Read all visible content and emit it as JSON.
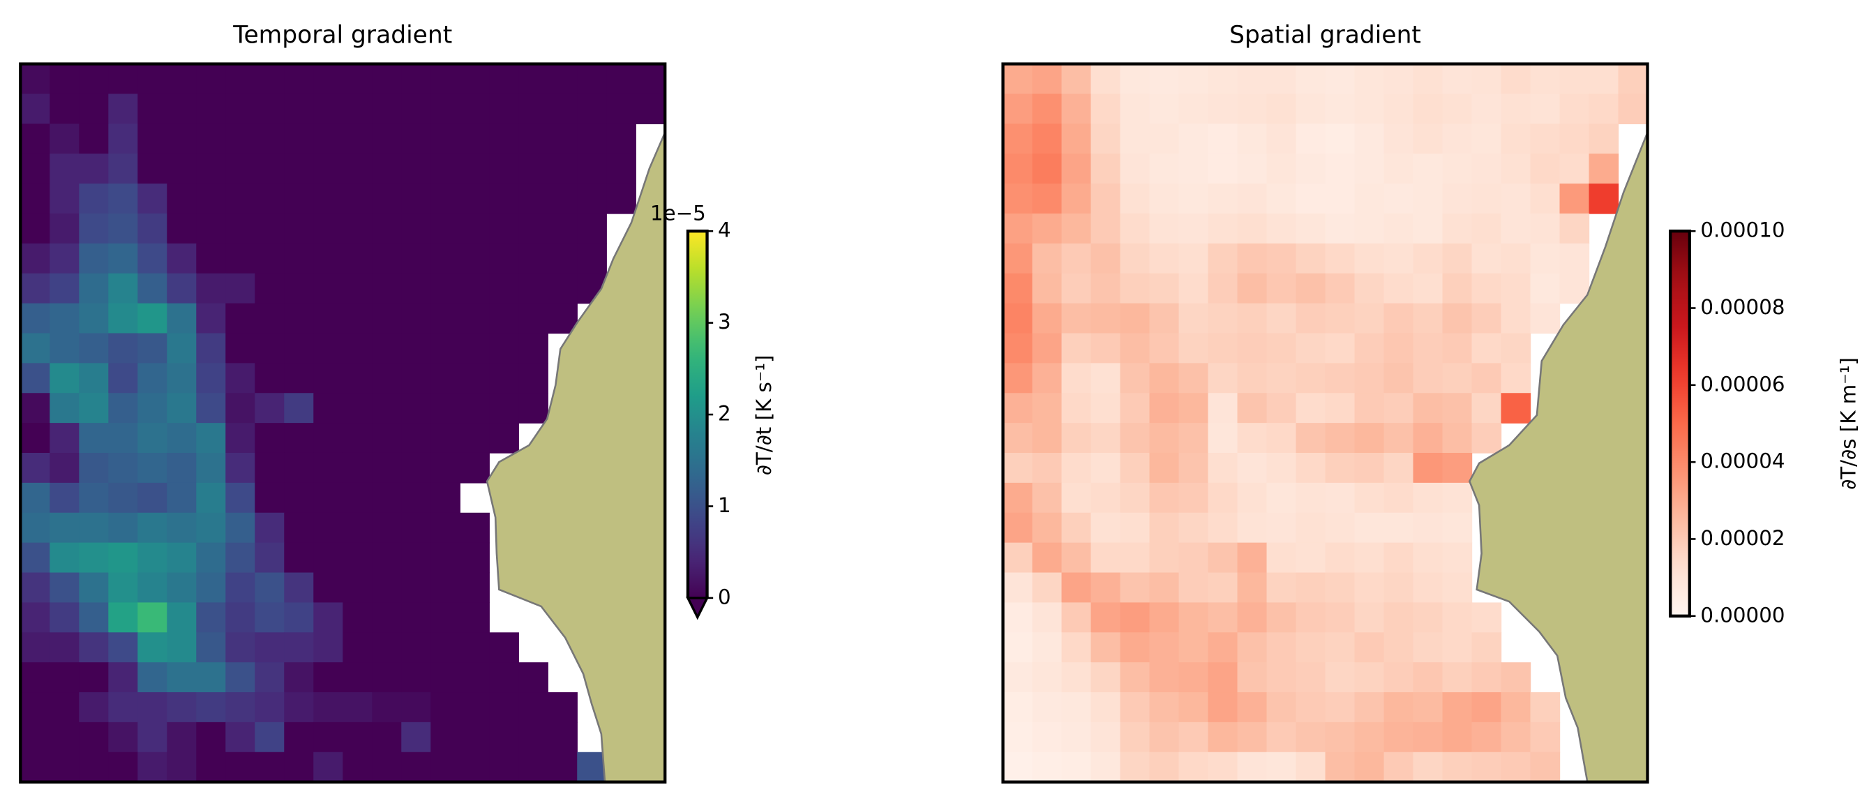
{
  "chart_data": [
    {
      "type": "heatmap",
      "title": "Temporal gradient",
      "colormap": "viridis",
      "extend": "min",
      "colorbar_label": "∂T/∂t [K s⁻¹]",
      "offset_label": "1e−5",
      "clim": [
        0,
        4
      ],
      "cticks": [
        0,
        1,
        2,
        3,
        4
      ],
      "values": [
        [
          0.1,
          0,
          0,
          0,
          0,
          0,
          0,
          0,
          0,
          0,
          0,
          0,
          0,
          0,
          0,
          0,
          0,
          0,
          0,
          0,
          0,
          0
        ],
        [
          0.3,
          0,
          0,
          0.4,
          0,
          0,
          0,
          0,
          0,
          0,
          0,
          0,
          0,
          0,
          0,
          0,
          0,
          0,
          0,
          0,
          0,
          0
        ],
        [
          0,
          0.2,
          0,
          0.5,
          0,
          0,
          0,
          0,
          0,
          0,
          0,
          0,
          0,
          0,
          0,
          0,
          0,
          0,
          0,
          0,
          0,
          null
        ],
        [
          0,
          0.4,
          0.4,
          0.6,
          0,
          0,
          0,
          0,
          0,
          0,
          0,
          0,
          0,
          0,
          0,
          0,
          0,
          0,
          0,
          0,
          0,
          null
        ],
        [
          0,
          0.4,
          0.8,
          0.9,
          0.5,
          0,
          0,
          0,
          0,
          0,
          0,
          0,
          0,
          0,
          0,
          0,
          0,
          0,
          0,
          0,
          0,
          null
        ],
        [
          0,
          0.3,
          0.9,
          1.0,
          0.7,
          0,
          0,
          0,
          0,
          0,
          0,
          0,
          0,
          0,
          0,
          0,
          0,
          0,
          0,
          0,
          null,
          null
        ],
        [
          0.3,
          0.5,
          1.2,
          1.3,
          0.9,
          0.4,
          0,
          0,
          0,
          0,
          0,
          0,
          0,
          0,
          0,
          0,
          0,
          0,
          0,
          0,
          null,
          null
        ],
        [
          0.6,
          0.8,
          1.4,
          1.8,
          1.2,
          0.7,
          0.3,
          0.3,
          0,
          0,
          0,
          0,
          0,
          0,
          0,
          0,
          0,
          0,
          0,
          0,
          null,
          null
        ],
        [
          1.2,
          1.3,
          1.5,
          1.9,
          2.1,
          1.5,
          0.4,
          0,
          0,
          0,
          0,
          0,
          0,
          0,
          0,
          0,
          0,
          0,
          0,
          null,
          null,
          null
        ],
        [
          1.5,
          1.3,
          1.2,
          1.0,
          1.1,
          1.6,
          0.7,
          0,
          0,
          0,
          0,
          0,
          0,
          0,
          0,
          0,
          0,
          0,
          null,
          null,
          null,
          null
        ],
        [
          1.0,
          1.9,
          1.7,
          0.9,
          1.3,
          1.5,
          0.8,
          0.3,
          0,
          0,
          0,
          0,
          0,
          0,
          0,
          0,
          0,
          0,
          null,
          null,
          null,
          null
        ],
        [
          0.1,
          1.6,
          1.8,
          1.2,
          1.4,
          1.6,
          0.9,
          0.2,
          0.4,
          0.7,
          0,
          0,
          0,
          0,
          0,
          0,
          0,
          0,
          null,
          null,
          null,
          null
        ],
        [
          0,
          0.4,
          1.3,
          1.3,
          1.5,
          1.4,
          1.6,
          0.3,
          0,
          0,
          0,
          0,
          0,
          0,
          0,
          0,
          0,
          null,
          null,
          null,
          null,
          null
        ],
        [
          0.5,
          0.3,
          1.1,
          1.2,
          1.3,
          1.2,
          1.5,
          0.5,
          0,
          0,
          0,
          0,
          0,
          0,
          0,
          0,
          null,
          null,
          null,
          null,
          null,
          null
        ],
        [
          1.3,
          0.9,
          1.2,
          1.1,
          1.0,
          1.2,
          1.7,
          0.9,
          0,
          0,
          0,
          0,
          0,
          0,
          0,
          null,
          null,
          null,
          null,
          null,
          null,
          null
        ],
        [
          1.4,
          1.5,
          1.5,
          1.4,
          1.6,
          1.5,
          1.6,
          1.2,
          0.5,
          0,
          0,
          0,
          0,
          0,
          0,
          0,
          null,
          null,
          null,
          null,
          null,
          null
        ],
        [
          1.0,
          1.9,
          2.0,
          2.1,
          1.9,
          1.8,
          1.4,
          1.0,
          0.6,
          0,
          0,
          0,
          0,
          0,
          0,
          0,
          null,
          null,
          null,
          null,
          null,
          null
        ],
        [
          0.6,
          1.0,
          1.5,
          2.0,
          1.8,
          1.6,
          1.3,
          0.8,
          1.0,
          0.6,
          0,
          0,
          0,
          0,
          0,
          0,
          null,
          null,
          null,
          null,
          null,
          null
        ],
        [
          0.4,
          0.7,
          1.2,
          2.3,
          2.7,
          1.9,
          1.0,
          0.7,
          0.9,
          0.8,
          0.4,
          0,
          0,
          0,
          0,
          0,
          null,
          null,
          null,
          null,
          null,
          null
        ],
        [
          0.3,
          0.3,
          0.6,
          0.9,
          2.0,
          1.9,
          1.1,
          0.6,
          0.5,
          0.5,
          0.4,
          0,
          0,
          0,
          0,
          0,
          0,
          null,
          null,
          null,
          null,
          null
        ],
        [
          0,
          0,
          0,
          0.4,
          1.3,
          1.5,
          1.5,
          1.0,
          0.6,
          0.2,
          0,
          0,
          0,
          0,
          0,
          0,
          0,
          0,
          null,
          null,
          null,
          null
        ],
        [
          0,
          0,
          0.3,
          0.5,
          0.5,
          0.6,
          0.7,
          0.6,
          0.5,
          0.3,
          0.2,
          0.2,
          0.1,
          0.1,
          0,
          0,
          0,
          0,
          0,
          null,
          null,
          null
        ],
        [
          0,
          0,
          0,
          0.2,
          0.5,
          0.2,
          0,
          0.4,
          0.8,
          0,
          0,
          0,
          0,
          0.5,
          0,
          0,
          0,
          0,
          0,
          null,
          null,
          null
        ],
        [
          0,
          0,
          0,
          0,
          0.3,
          0.2,
          0,
          0,
          0,
          0,
          0.3,
          0,
          0,
          0,
          0,
          0,
          0,
          0,
          0,
          1.0,
          null,
          null
        ]
      ]
    },
    {
      "type": "heatmap",
      "title": "Spatial gradient",
      "colormap": "Reds",
      "extend": "neither",
      "colorbar_label": "∂T/∂s [K m⁻¹]",
      "clim": [
        0,
        0.0001
      ],
      "cticks": [
        {
          "value": 0,
          "label": "0.00000"
        },
        {
          "value": 2e-05,
          "label": "0.00002"
        },
        {
          "value": 4e-05,
          "label": "0.00004"
        },
        {
          "value": 6e-05,
          "label": "0.00006"
        },
        {
          "value": 8e-05,
          "label": "0.00008"
        },
        {
          "value": 0.0001,
          "label": "0.00010"
        }
      ],
      "values": [
        [
          3e-05,
          3.2e-05,
          2.4e-05,
          1.3e-05,
          8e-06,
          7e-06,
          8e-06,
          9e-06,
          1e-05,
          1e-05,
          8e-06,
          7e-06,
          9e-06,
          1e-05,
          1.2e-05,
          1e-05,
          1.1e-05,
          1.4e-05,
          1.2e-05,
          1.3e-05,
          1.3e-05,
          1.8e-05
        ],
        [
          3.4e-05,
          3.8e-05,
          2.8e-05,
          1.5e-05,
          9e-06,
          8e-06,
          9e-06,
          1e-05,
          1.1e-05,
          1.2e-05,
          9e-06,
          8e-06,
          9e-06,
          1.1e-05,
          1.3e-05,
          1.2e-05,
          1e-05,
          1.2e-05,
          1.1e-05,
          1.4e-05,
          1.5e-05,
          1.9e-05
        ],
        [
          3.8e-05,
          4.2e-05,
          3e-05,
          1.6e-05,
          9e-06,
          9e-06,
          7e-06,
          6e-06,
          8e-06,
          1e-05,
          6e-06,
          5e-06,
          7e-06,
          1e-05,
          1.2e-05,
          1e-05,
          9e-06,
          1.3e-05,
          1.4e-05,
          1.5e-05,
          1.7e-05,
          null
        ],
        [
          4e-05,
          4.4e-05,
          3.2e-05,
          1.8e-05,
          1e-05,
          8e-06,
          7e-06,
          6e-06,
          7e-06,
          9e-06,
          7e-06,
          6e-06,
          7e-06,
          9e-06,
          8e-06,
          9e-06,
          1e-05,
          1.2e-05,
          1.5e-05,
          1.4e-05,
          3e-05,
          null
        ],
        [
          3.8e-05,
          4e-05,
          3e-05,
          2e-05,
          1.2e-05,
          9e-06,
          8e-06,
          9e-06,
          1e-05,
          8e-06,
          6e-06,
          6e-06,
          8e-06,
          7e-06,
          8e-06,
          1e-05,
          1.1e-05,
          1e-05,
          1.3e-05,
          3.5e-05,
          6.2e-05,
          null
        ],
        [
          3.3e-05,
          3e-05,
          2.6e-05,
          2e-05,
          1.4e-05,
          1.1e-05,
          1e-05,
          1.2e-05,
          1.3e-05,
          1.1e-05,
          9e-06,
          7e-06,
          8e-06,
          9e-06,
          8e-06,
          1.2e-05,
          1.3e-05,
          1e-05,
          1.1e-05,
          1.6e-05,
          null,
          null
        ],
        [
          3.6e-05,
          2.4e-05,
          2e-05,
          2.3e-05,
          1.6e-05,
          1.4e-05,
          1.3e-05,
          1.8e-05,
          2.1e-05,
          2e-05,
          1.7e-05,
          1.5e-05,
          1.3e-05,
          1.2e-05,
          1.4e-05,
          1.6e-05,
          1.2e-05,
          1.3e-05,
          9e-06,
          1e-05,
          null,
          null
        ],
        [
          4e-05,
          2.5e-05,
          1.9e-05,
          2.2e-05,
          1.8e-05,
          1.7e-05,
          1.4e-05,
          1.9e-05,
          2.4e-05,
          2.1e-05,
          2.3e-05,
          2e-05,
          1.6e-05,
          1.4e-05,
          1.3e-05,
          1.8e-05,
          1.5e-05,
          1.4e-05,
          8e-06,
          1e-05,
          null,
          null
        ],
        [
          4.2e-05,
          3e-05,
          2.4e-05,
          2.5e-05,
          2.6e-05,
          2.2e-05,
          1.6e-05,
          1.7e-05,
          1.8e-05,
          1.6e-05,
          1.9e-05,
          1.8e-05,
          1.7e-05,
          2e-05,
          1.8e-05,
          2.2e-05,
          1.9e-05,
          1.4e-05,
          1e-05,
          null,
          null,
          null
        ],
        [
          4e-05,
          3.2e-05,
          1.8e-05,
          2e-05,
          2.4e-05,
          2.1e-05,
          1.7e-05,
          1.8e-05,
          1.9e-05,
          1.8e-05,
          1.6e-05,
          1.5e-05,
          1.9e-05,
          2.1e-05,
          1.9e-05,
          2e-05,
          1.5e-05,
          1.6e-05,
          null,
          null,
          null,
          null
        ],
        [
          3.6e-05,
          2.8e-05,
          1.4e-05,
          1.2e-05,
          2.2e-05,
          2.6e-05,
          2.3e-05,
          1.6e-05,
          1.8e-05,
          1.7e-05,
          1.8e-05,
          1.9e-05,
          2e-05,
          2.2e-05,
          1.9e-05,
          1.8e-05,
          2e-05,
          1.5e-05,
          null,
          null,
          null,
          null
        ],
        [
          2.8e-05,
          2.6e-05,
          1.5e-05,
          1.3e-05,
          2e-05,
          2.8e-05,
          2.6e-05,
          1e-05,
          2.2e-05,
          1.9e-05,
          1.4e-05,
          1.5e-05,
          2e-05,
          1.9e-05,
          2.4e-05,
          2.3e-05,
          1.6e-05,
          5.2e-05,
          null,
          null,
          null,
          null
        ],
        [
          2.4e-05,
          2.6e-05,
          1.8e-05,
          1.6e-05,
          2.2e-05,
          2.5e-05,
          2.3e-05,
          9e-06,
          1.4e-05,
          1.5e-05,
          2.2e-05,
          2.4e-05,
          2.6e-05,
          2.3e-05,
          2.8e-05,
          2.4e-05,
          1.9e-05,
          null,
          null,
          null,
          null,
          null
        ],
        [
          1.8e-05,
          2e-05,
          1.4e-05,
          1.2e-05,
          1.8e-05,
          2.6e-05,
          2.2e-05,
          1.3e-05,
          1e-05,
          1.2e-05,
          1.5e-05,
          1.8e-05,
          1.9e-05,
          1.6e-05,
          3.6e-05,
          3.4e-05,
          null,
          null,
          null,
          null,
          null,
          null
        ],
        [
          3e-05,
          2.3e-05,
          1.3e-05,
          1.4e-05,
          1.6e-05,
          2.1e-05,
          2e-05,
          1.5e-05,
          1.2e-05,
          9e-06,
          1.1e-05,
          1e-05,
          1.3e-05,
          1.4e-05,
          1.2e-05,
          1.1e-05,
          null,
          null,
          null,
          null,
          null,
          null
        ],
        [
          3.2e-05,
          2.6e-05,
          1.8e-05,
          1.2e-05,
          1.3e-05,
          1.8e-05,
          1.6e-05,
          1.4e-05,
          1.1e-05,
          1e-05,
          1.2e-05,
          1.1e-05,
          9e-06,
          9e-06,
          1e-05,
          9e-06,
          null,
          null,
          null,
          null,
          null,
          null
        ],
        [
          1.8e-05,
          3e-05,
          2.4e-05,
          1.5e-05,
          1.5e-05,
          1.8e-05,
          1.9e-05,
          2.2e-05,
          2.8e-05,
          1.3e-05,
          1.2e-05,
          1.4e-05,
          1.3e-05,
          1.5e-05,
          1.3e-05,
          1.2e-05,
          null,
          null,
          null,
          null,
          null,
          null
        ],
        [
          1e-05,
          1.6e-05,
          3.2e-05,
          2.8e-05,
          2.2e-05,
          2.4e-05,
          1.9e-05,
          1.8e-05,
          2.6e-05,
          1.7e-05,
          1.8e-05,
          1.7e-05,
          1.5e-05,
          1.6e-05,
          1.4e-05,
          1.3e-05,
          null,
          null,
          null,
          null,
          null,
          null
        ],
        [
          6e-06,
          1e-05,
          2e-05,
          3.2e-05,
          3.4e-05,
          3e-05,
          2.6e-05,
          2.4e-05,
          2.8e-05,
          2.3e-05,
          2e-05,
          1.9e-05,
          1.6e-05,
          1.8e-05,
          1.7e-05,
          1.5e-05,
          1.4e-05,
          null,
          null,
          null,
          null,
          null
        ],
        [
          5e-06,
          8e-06,
          1.5e-05,
          2.4e-05,
          3e-05,
          2.8e-05,
          2.6e-05,
          2.9e-05,
          2.3e-05,
          2e-05,
          1.8e-05,
          1.7e-05,
          2e-05,
          1.8e-05,
          1.6e-05,
          1.5e-05,
          1.7e-05,
          null,
          null,
          null,
          null,
          null
        ],
        [
          7e-06,
          9e-06,
          1.2e-05,
          1.6e-05,
          2.4e-05,
          2.8e-05,
          2.9e-05,
          3.2e-05,
          2.2e-05,
          2e-05,
          1.9e-05,
          1.6e-05,
          1.7e-05,
          1.9e-05,
          2.1e-05,
          1.8e-05,
          2e-05,
          2.2e-05,
          null,
          null,
          null,
          null
        ],
        [
          5e-06,
          7e-06,
          8e-06,
          1.2e-05,
          2e-05,
          2.4e-05,
          2.6e-05,
          3.2e-05,
          2.8e-05,
          2.2e-05,
          2e-05,
          1.9e-05,
          2.2e-05,
          2.6e-05,
          2.5e-05,
          3e-05,
          3.2e-05,
          2.6e-05,
          1.8e-05,
          null,
          null,
          null
        ],
        [
          4e-06,
          6e-06,
          7e-06,
          1e-05,
          1.8e-05,
          2.2e-05,
          2e-05,
          2.6e-05,
          2.4e-05,
          2e-05,
          2.2e-05,
          2.3e-05,
          2.5e-05,
          2.7e-05,
          2.8e-05,
          3e-05,
          2.8e-05,
          2.4e-05,
          2e-05,
          null,
          null,
          null
        ],
        [
          3e-06,
          4e-06,
          5e-06,
          8e-06,
          1.6e-05,
          1.8e-05,
          1.5e-05,
          1.4e-05,
          1e-05,
          9e-06,
          1.3e-05,
          2.4e-05,
          2.6e-05,
          2e-05,
          1.6e-05,
          1.8e-05,
          1.9e-05,
          2e-05,
          2.2e-05,
          null,
          null,
          null
        ]
      ]
    }
  ]
}
